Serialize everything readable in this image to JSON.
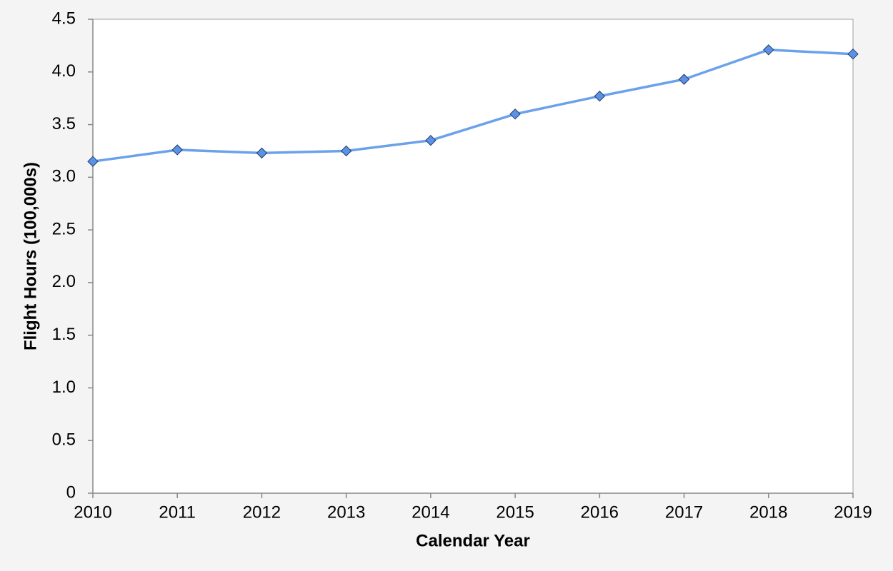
{
  "chart_data": {
    "type": "line",
    "x_label": "Calendar Year",
    "y_label": "Flight Hours (100,000s)",
    "x": [
      2010,
      2011,
      2012,
      2013,
      2014,
      2015,
      2016,
      2017,
      2018,
      2019
    ],
    "series": [
      {
        "name": "Flight Hours",
        "color": "#6aa1ea",
        "marker_color": "#5b92e5",
        "values": [
          3.15,
          3.26,
          3.23,
          3.25,
          3.35,
          3.6,
          3.77,
          3.93,
          4.21,
          4.17
        ]
      }
    ],
    "xlim": [
      2010,
      2019
    ],
    "xticks": [
      2010,
      2011,
      2012,
      2013,
      2014,
      2015,
      2016,
      2017,
      2018,
      2019
    ],
    "ylim": [
      0,
      4.5
    ],
    "yticks": [
      0,
      0.5,
      {
        "value": 1,
        "label": "1.0"
      },
      1.5,
      {
        "value": 2,
        "label": "2.0"
      },
      2.5,
      {
        "value": 3,
        "label": "3.0"
      },
      3.5,
      {
        "value": 4,
        "label": "4.0"
      },
      4.5
    ],
    "grid": false
  }
}
